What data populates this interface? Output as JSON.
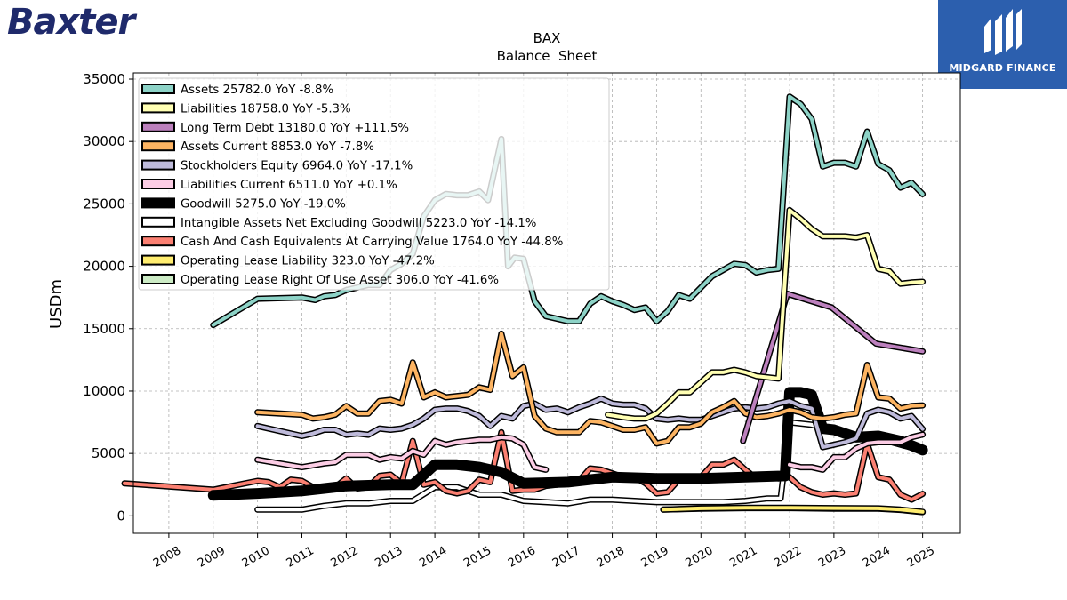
{
  "logos": {
    "left_brand": "Baxter",
    "right_brand": "MIDGARD FINANCE"
  },
  "chart_data": {
    "type": "line",
    "title": "BAX",
    "subtitle": "Balance  Sheet",
    "xlabel": "",
    "ylabel": "USDm",
    "ylim": [
      -1400,
      35500
    ],
    "xlim": [
      2007.2,
      2025.85
    ],
    "x_ticks": [
      "2008",
      "2009",
      "2010",
      "2011",
      "2012",
      "2013",
      "2014",
      "2015",
      "2016",
      "2017",
      "2018",
      "2019",
      "2020",
      "2021",
      "2022",
      "2023",
      "2024",
      "2025"
    ],
    "y_ticks": [
      0,
      5000,
      10000,
      15000,
      20000,
      25000,
      30000,
      35000
    ],
    "grid": true,
    "legend_position": "top-left",
    "series": [
      {
        "name": "Assets  25782.0 YoY -8.8%",
        "color": "#8dd3c7",
        "width": 4,
        "x": [
          2009.0,
          2010.0,
          2011.0,
          2011.3,
          2011.5,
          2011.75,
          2012.0,
          2012.25,
          2012.5,
          2012.75,
          2013.0,
          2013.25,
          2013.5,
          2013.75,
          2014.0,
          2014.25,
          2014.5,
          2014.75,
          2015.0,
          2015.2,
          2015.5,
          2015.65,
          2015.8,
          2016.0,
          2016.25,
          2016.5,
          2017.0,
          2017.25,
          2017.5,
          2017.75,
          2018.0,
          2018.25,
          2018.5,
          2018.75,
          2019.0,
          2019.25,
          2019.5,
          2019.75,
          2020.0,
          2020.25,
          2020.5,
          2020.75,
          2021.0,
          2021.25,
          2021.5,
          2021.75,
          2022.0,
          2022.25,
          2022.5,
          2022.75,
          2023.0,
          2023.25,
          2023.5,
          2023.75,
          2024.0,
          2024.25,
          2024.5,
          2024.75,
          2025.0
        ],
        "y": [
          15300,
          17400,
          17500,
          17300,
          17600,
          17700,
          18100,
          18300,
          18500,
          18500,
          19700,
          20200,
          21000,
          24000,
          25300,
          25800,
          25700,
          25700,
          26000,
          25300,
          30200,
          20000,
          20700,
          20600,
          17200,
          16000,
          15600,
          15600,
          17000,
          17600,
          17200,
          16900,
          16500,
          16700,
          15600,
          16400,
          17700,
          17400,
          18300,
          19200,
          19700,
          20200,
          20100,
          19500,
          19700,
          19800,
          33600,
          33000,
          31800,
          28000,
          28300,
          28300,
          28000,
          30800,
          28200,
          27700,
          26300,
          26700,
          25782
        ]
      },
      {
        "name": "Liabilities  18758.0 YoY -5.3%",
        "color": "#ffffb3",
        "width": 4,
        "x": [
          2017.9,
          2018.25,
          2018.5,
          2018.75,
          2019.0,
          2019.25,
          2019.5,
          2019.75,
          2020.0,
          2020.25,
          2020.5,
          2020.75,
          2021.0,
          2021.25,
          2021.5,
          2021.75,
          2022.0,
          2022.25,
          2022.5,
          2022.75,
          2023.0,
          2023.25,
          2023.5,
          2023.75,
          2024.0,
          2024.25,
          2024.5,
          2024.75,
          2025.0
        ],
        "y": [
          8100,
          7900,
          7800,
          7800,
          8200,
          9000,
          9900,
          9900,
          10700,
          11500,
          11500,
          11700,
          11500,
          11200,
          11100,
          11000,
          24500,
          23800,
          23000,
          22400,
          22400,
          22400,
          22300,
          22500,
          19800,
          19600,
          18600,
          18700,
          18758
        ]
      },
      {
        "name": "Long Term Debt  13180.0 YoY +111.5%",
        "color": "#bc80bd",
        "width": 4,
        "x": [
          2020.95,
          2021.95,
          2022.95,
          2023.95,
          2025.0
        ],
        "y": [
          6000,
          17800,
          16700,
          13800,
          13180
        ]
      },
      {
        "name": "Assets Current  8853.0 YoY -7.8%",
        "color": "#fdb462",
        "width": 4,
        "x": [
          2010.0,
          2011.0,
          2011.25,
          2011.5,
          2011.75,
          2012.0,
          2012.25,
          2012.5,
          2012.75,
          2013.0,
          2013.25,
          2013.5,
          2013.75,
          2014.0,
          2014.25,
          2014.5,
          2014.75,
          2015.0,
          2015.25,
          2015.5,
          2015.75,
          2016.0,
          2016.25,
          2016.5,
          2016.75,
          2017.0,
          2017.25,
          2017.5,
          2017.75,
          2018.0,
          2018.25,
          2018.5,
          2018.75,
          2019.0,
          2019.25,
          2019.5,
          2019.75,
          2020.0,
          2020.25,
          2020.5,
          2020.75,
          2021.0,
          2021.25,
          2021.5,
          2021.75,
          2022.0,
          2022.25,
          2022.5,
          2022.75,
          2023.0,
          2023.25,
          2023.5,
          2023.75,
          2024.0,
          2024.25,
          2024.5,
          2024.75,
          2025.0
        ],
        "y": [
          8300,
          8100,
          7800,
          7900,
          8100,
          8800,
          8200,
          8200,
          9200,
          9300,
          9000,
          12300,
          9500,
          9900,
          9500,
          9600,
          9700,
          10300,
          10100,
          14600,
          11200,
          11900,
          8000,
          7000,
          6700,
          6700,
          6700,
          7600,
          7500,
          7200,
          6900,
          6900,
          7100,
          5800,
          6000,
          7100,
          7100,
          7400,
          8300,
          8700,
          9200,
          8200,
          7900,
          8000,
          8200,
          8500,
          8300,
          7900,
          7800,
          7900,
          8100,
          8200,
          12100,
          9500,
          9400,
          8600,
          8800,
          8853
        ]
      },
      {
        "name": "Stockholders Equity  6964.0 YoY -17.1%",
        "color": "#bebada",
        "width": 4,
        "x": [
          2010.0,
          2011.0,
          2011.25,
          2011.5,
          2011.75,
          2012.0,
          2012.25,
          2012.5,
          2012.75,
          2013.0,
          2013.25,
          2013.5,
          2013.75,
          2014.0,
          2014.25,
          2014.5,
          2014.75,
          2015.0,
          2015.25,
          2015.5,
          2015.75,
          2016.0,
          2016.25,
          2016.5,
          2016.75,
          2017.0,
          2017.25,
          2017.5,
          2017.75,
          2018.0,
          2018.25,
          2018.5,
          2018.75,
          2019.0,
          2019.25,
          2019.5,
          2019.75,
          2020.0,
          2020.25,
          2020.5,
          2020.75,
          2021.0,
          2021.25,
          2021.5,
          2021.75,
          2022.0,
          2022.25,
          2022.5,
          2022.75,
          2023.0,
          2023.25,
          2023.5,
          2023.75,
          2024.0,
          2024.25,
          2024.5,
          2024.75,
          2025.0
        ],
        "y": [
          7200,
          6400,
          6600,
          6900,
          6900,
          6500,
          6600,
          6500,
          7000,
          6900,
          7000,
          7300,
          7800,
          8500,
          8600,
          8600,
          8400,
          8000,
          7200,
          8000,
          7800,
          8800,
          9000,
          8500,
          8600,
          8300,
          8700,
          9000,
          9400,
          9000,
          8900,
          8900,
          8600,
          7800,
          7700,
          7800,
          7700,
          7700,
          8000,
          8300,
          8600,
          8700,
          8600,
          8700,
          9000,
          9200,
          8800,
          8600,
          5500,
          5700,
          5900,
          6200,
          8200,
          8500,
          8300,
          7800,
          8000,
          6964
        ]
      },
      {
        "name": "Liabilities Current  6511.0 YoY +0.1%",
        "color": "#fccde5",
        "width": 4,
        "x": [
          2010.0,
          2011.0,
          2011.5,
          2011.75,
          2012.0,
          2012.25,
          2012.5,
          2012.75,
          2013.0,
          2013.25,
          2013.5,
          2013.75,
          2014.0,
          2014.25,
          2014.5,
          2014.75,
          2015.0,
          2015.25,
          2015.5,
          2015.75,
          2016.0,
          2016.25,
          2016.5
        ],
        "y": [
          4500,
          3900,
          4200,
          4300,
          4900,
          4900,
          4900,
          4500,
          4700,
          4600,
          5200,
          4900,
          6000,
          5700,
          5900,
          6000,
          6100,
          6100,
          6300,
          6200,
          5700,
          3900,
          3700
        ],
        "x2": [
          2022.0,
          2022.25,
          2022.5,
          2022.75,
          2023.0,
          2023.25,
          2023.5,
          2023.75,
          2024.0,
          2024.25,
          2024.5,
          2024.75,
          2025.0
        ],
        "y2": [
          4100,
          3900,
          3900,
          3700,
          4700,
          4700,
          5400,
          5800,
          5900,
          5900,
          5900,
          6300,
          6511
        ]
      },
      {
        "name": "Goodwill  5275.0 YoY -19.0%",
        "color": "#000000",
        "width": 9,
        "x": [
          2009.0,
          2010.0,
          2011.0,
          2012.0,
          2013.0,
          2013.5,
          2014.0,
          2014.5,
          2015.0,
          2015.5,
          2016.0,
          2017.0,
          2018.0,
          2019.0,
          2020.0,
          2021.0,
          2021.9,
          2022.0,
          2022.25,
          2022.5,
          2022.75,
          2023.0,
          2023.5,
          2024.0,
          2024.5,
          2025.0
        ],
        "y": [
          1650,
          1800,
          2000,
          2400,
          2500,
          2500,
          4100,
          4100,
          3900,
          3500,
          2600,
          2700,
          3100,
          3000,
          3000,
          3100,
          3200,
          9900,
          9900,
          9700,
          7000,
          6900,
          6300,
          6400,
          6000,
          5275
        ]
      },
      {
        "name": "Intangible Assets Net Excluding Goodwill  5223.0 YoY -14.1%",
        "color": "#ffffff",
        "width": 4,
        "x": [
          2010.0,
          2011.0,
          2011.5,
          2012.0,
          2012.5,
          2013.0,
          2013.5,
          2014.0,
          2014.5,
          2015.0,
          2015.5,
          2016.0,
          2017.0,
          2017.5,
          2018.0,
          2018.5,
          2019.0,
          2019.5,
          2020.0,
          2020.5,
          2021.0,
          2021.5,
          2021.8,
          2022.0,
          2022.5,
          2023.0,
          2023.5,
          2024.0,
          2024.5,
          2025.0
        ],
        "y": [
          500,
          500,
          800,
          1000,
          1000,
          1200,
          1200,
          2300,
          2300,
          1700,
          1700,
          1200,
          1000,
          1300,
          1300,
          1200,
          1100,
          1100,
          1100,
          1100,
          1200,
          1400,
          1400,
          7500,
          7300,
          6800,
          6500,
          6200,
          5700,
          5223
        ]
      },
      {
        "name": "Cash And Cash Equivalents At Carrying Value  1764.0 YoY -44.8%",
        "color": "#fb8072",
        "width": 4,
        "x": [
          2007.0,
          2009.0,
          2010.0,
          2010.25,
          2010.5,
          2010.75,
          2011.0,
          2011.25,
          2011.5,
          2011.75,
          2012.0,
          2012.25,
          2012.5,
          2012.75,
          2013.0,
          2013.25,
          2013.5,
          2013.75,
          2014.0,
          2014.25,
          2014.5,
          2014.75,
          2015.0,
          2015.25,
          2015.5,
          2015.75,
          2016.0,
          2016.25,
          2016.5,
          2016.75,
          2017.0,
          2017.25,
          2017.5,
          2017.75,
          2018.0,
          2018.25,
          2018.5,
          2018.75,
          2019.0,
          2019.25,
          2019.5,
          2019.75,
          2020.0,
          2020.25,
          2020.5,
          2020.75,
          2021.0,
          2021.25,
          2021.5,
          2021.75,
          2022.0,
          2022.25,
          2022.5,
          2022.75,
          2023.0,
          2023.25,
          2023.5,
          2023.75,
          2024.0,
          2024.25,
          2024.5,
          2024.75,
          2025.0
        ],
        "y": [
          2600,
          2100,
          2800,
          2700,
          2300,
          2900,
          2800,
          2300,
          2100,
          2300,
          3000,
          2200,
          2300,
          3200,
          3300,
          2600,
          6000,
          2500,
          2700,
          2000,
          1800,
          2000,
          2900,
          2700,
          6700,
          2000,
          2100,
          2100,
          2400,
          2500,
          2800,
          2800,
          3800,
          3700,
          3400,
          3100,
          3100,
          2600,
          1800,
          1900,
          2900,
          3000,
          3100,
          4100,
          4100,
          4500,
          3700,
          3000,
          3100,
          3000,
          3100,
          2300,
          1900,
          1700,
          1800,
          1700,
          1800,
          5800,
          3100,
          2900,
          1700,
          1300,
          1764
        ]
      },
      {
        "name": "Operating Lease Liability  323.0 YoY -47.2%",
        "color": "#ffed6f",
        "width": 4,
        "x": [
          2019.15,
          2020.0,
          2021.0,
          2022.0,
          2023.0,
          2024.0,
          2024.5,
          2025.0
        ],
        "y": [
          500,
          600,
          650,
          650,
          620,
          600,
          500,
          323
        ]
      },
      {
        "name": "Operating Lease Right Of Use Asset  306.0 YoY -41.6%",
        "color": "#ccebc5",
        "width": 4,
        "x": [
          2019.15,
          2020.0,
          2021.0,
          2022.0,
          2023.0,
          2024.0,
          2024.5,
          2025.0
        ],
        "y": [
          500,
          580,
          620,
          620,
          580,
          570,
          480,
          306
        ]
      }
    ]
  }
}
